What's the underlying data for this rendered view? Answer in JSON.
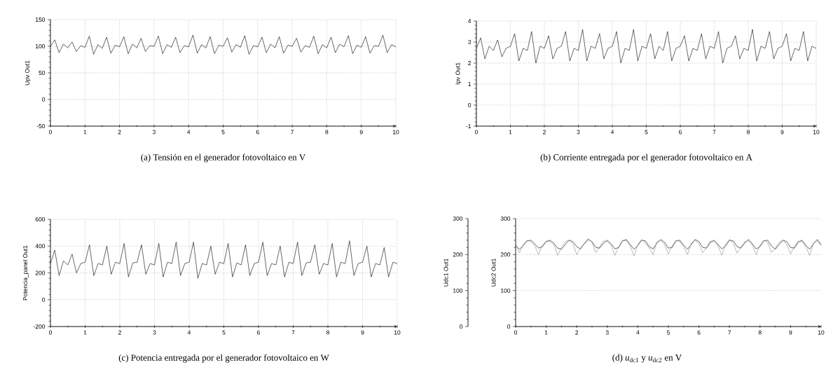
{
  "chart_data": [
    {
      "type": "line",
      "title": "(a) Tensión en el generador fotovoltaico en V",
      "ylabel": "Upv Out1",
      "xlim": [
        0,
        10
      ],
      "ylim": [
        -50,
        150
      ],
      "xticks": [
        0,
        1,
        2,
        3,
        4,
        5,
        6,
        7,
        8,
        9,
        10
      ],
      "yticks": [
        -50,
        0,
        50,
        100,
        150
      ],
      "grid": true,
      "x": [
        0,
        0.125,
        0.25,
        0.375,
        0.5,
        0.625,
        0.75,
        0.875,
        1,
        1.125,
        1.25,
        1.375,
        1.5,
        1.625,
        1.75,
        1.875,
        2,
        2.125,
        2.25,
        2.375,
        2.5,
        2.625,
        2.75,
        2.875,
        3,
        3.125,
        3.25,
        3.375,
        3.5,
        3.625,
        3.75,
        3.875,
        4,
        4.125,
        4.25,
        4.375,
        4.5,
        4.625,
        4.75,
        4.875,
        5,
        5.125,
        5.25,
        5.375,
        5.5,
        5.625,
        5.75,
        5.875,
        6,
        6.125,
        6.25,
        6.375,
        6.5,
        6.625,
        6.75,
        6.875,
        7,
        7.125,
        7.25,
        7.375,
        7.5,
        7.625,
        7.75,
        7.875,
        8,
        8.125,
        8.25,
        8.375,
        8.5,
        8.625,
        8.75,
        8.875,
        9,
        9.125,
        9.25,
        9.375,
        9.5,
        9.625,
        9.75,
        9.875,
        10
      ],
      "series": [
        {
          "color": "#000000",
          "values": [
            100,
            112,
            88,
            104,
            97,
            108,
            90,
            101,
            98,
            119,
            85,
            103,
            96,
            117,
            87,
            102,
            99,
            118,
            86,
            104,
            97,
            115,
            90,
            101,
            100,
            119,
            86,
            103,
            98,
            117,
            88,
            101,
            99,
            121,
            87,
            103,
            97,
            118,
            86,
            102,
            100,
            116,
            89,
            103,
            98,
            120,
            85,
            101,
            99,
            117,
            88,
            104,
            97,
            118,
            87,
            102,
            100,
            115,
            89,
            101,
            98,
            119,
            86,
            103,
            97,
            117,
            88,
            104,
            99,
            120,
            86,
            102,
            98,
            118,
            87,
            101,
            100,
            121,
            88,
            103,
            99
          ]
        }
      ]
    },
    {
      "type": "line",
      "title": "(b) Corriente entregada por el generador fotovoltaico en A",
      "ylabel": "Ipv Out1",
      "xlim": [
        0,
        10
      ],
      "ylim": [
        -1,
        4
      ],
      "xticks": [
        0,
        1,
        2,
        3,
        4,
        5,
        6,
        7,
        8,
        9,
        10
      ],
      "yticks": [
        -1,
        0,
        1,
        2,
        3,
        4
      ],
      "grid": true,
      "x": [
        0,
        0.125,
        0.25,
        0.375,
        0.5,
        0.625,
        0.75,
        0.875,
        1,
        1.125,
        1.25,
        1.375,
        1.5,
        1.625,
        1.75,
        1.875,
        2,
        2.125,
        2.25,
        2.375,
        2.5,
        2.625,
        2.75,
        2.875,
        3,
        3.125,
        3.25,
        3.375,
        3.5,
        3.625,
        3.75,
        3.875,
        4,
        4.125,
        4.25,
        4.375,
        4.5,
        4.625,
        4.75,
        4.875,
        5,
        5.125,
        5.25,
        5.375,
        5.5,
        5.625,
        5.75,
        5.875,
        6,
        6.125,
        6.25,
        6.375,
        6.5,
        6.625,
        6.75,
        6.875,
        7,
        7.125,
        7.25,
        7.375,
        7.5,
        7.625,
        7.75,
        7.875,
        8,
        8.125,
        8.25,
        8.375,
        8.5,
        8.625,
        8.75,
        8.875,
        9,
        9.125,
        9.25,
        9.375,
        9.5,
        9.625,
        9.75,
        9.875,
        10
      ],
      "series": [
        {
          "color": "#000000",
          "values": [
            2.7,
            3.2,
            2.2,
            2.8,
            2.6,
            3.1,
            2.3,
            2.7,
            2.8,
            3.4,
            2.1,
            2.7,
            2.6,
            3.5,
            2.0,
            2.8,
            2.7,
            3.3,
            2.2,
            2.7,
            2.8,
            3.5,
            2.1,
            2.7,
            2.6,
            3.6,
            2.1,
            2.8,
            2.7,
            3.4,
            2.2,
            2.7,
            2.8,
            3.5,
            2.0,
            2.7,
            2.6,
            3.6,
            2.1,
            2.8,
            2.7,
            3.4,
            2.2,
            2.8,
            2.6,
            3.5,
            2.1,
            2.7,
            2.8,
            3.3,
            2.1,
            2.7,
            2.6,
            3.4,
            2.2,
            2.8,
            2.7,
            3.5,
            2.0,
            2.7,
            2.8,
            3.3,
            2.2,
            2.7,
            2.6,
            3.6,
            2.1,
            2.8,
            2.7,
            3.5,
            2.2,
            2.7,
            2.8,
            3.4,
            2.1,
            2.7,
            2.6,
            3.5,
            2.1,
            2.8,
            2.7
          ]
        }
      ]
    },
    {
      "type": "line",
      "title": "(c) Potencia entregada por el generador fotovoltaico en W",
      "ylabel": "Potencia_panel Out1",
      "xlim": [
        0,
        10
      ],
      "ylim": [
        -200,
        600
      ],
      "xticks": [
        0,
        1,
        2,
        3,
        4,
        5,
        6,
        7,
        8,
        9,
        10
      ],
      "yticks": [
        -200,
        0,
        200,
        400,
        600
      ],
      "grid": true,
      "x": [
        0,
        0.125,
        0.25,
        0.375,
        0.5,
        0.625,
        0.75,
        0.875,
        1,
        1.125,
        1.25,
        1.375,
        1.5,
        1.625,
        1.75,
        1.875,
        2,
        2.125,
        2.25,
        2.375,
        2.5,
        2.625,
        2.75,
        2.875,
        3,
        3.125,
        3.25,
        3.375,
        3.5,
        3.625,
        3.75,
        3.875,
        4,
        4.125,
        4.25,
        4.375,
        4.5,
        4.625,
        4.75,
        4.875,
        5,
        5.125,
        5.25,
        5.375,
        5.5,
        5.625,
        5.75,
        5.875,
        6,
        6.125,
        6.25,
        6.375,
        6.5,
        6.625,
        6.75,
        6.875,
        7,
        7.125,
        7.25,
        7.375,
        7.5,
        7.625,
        7.75,
        7.875,
        8,
        8.125,
        8.25,
        8.375,
        8.5,
        8.625,
        8.75,
        8.875,
        9,
        9.125,
        9.25,
        9.375,
        9.5,
        9.625,
        9.75,
        9.875,
        10
      ],
      "series": [
        {
          "color": "#000000",
          "values": [
            270,
            370,
            180,
            290,
            260,
            340,
            200,
            270,
            280,
            410,
            180,
            270,
            260,
            400,
            190,
            280,
            270,
            420,
            170,
            275,
            280,
            410,
            190,
            270,
            260,
            420,
            170,
            280,
            270,
            430,
            180,
            270,
            280,
            430,
            160,
            270,
            260,
            400,
            190,
            280,
            270,
            420,
            170,
            275,
            260,
            410,
            180,
            270,
            280,
            430,
            180,
            270,
            260,
            400,
            170,
            280,
            270,
            430,
            180,
            275,
            280,
            410,
            190,
            270,
            260,
            420,
            170,
            280,
            270,
            440,
            180,
            270,
            280,
            400,
            170,
            270,
            260,
            390,
            170,
            280,
            270
          ]
        }
      ]
    },
    {
      "type": "line",
      "title": "(d) *u*$_{dc1}$ y *u*$_{dc2}$ en V",
      "ylabel": "Udc1 Out1",
      "y2label": "Udc2 Out1",
      "xlim": [
        0,
        10
      ],
      "ylim": [
        0,
        300
      ],
      "y2lim": [
        0,
        300
      ],
      "xticks": [
        0,
        1,
        2,
        3,
        4,
        5,
        6,
        7,
        8,
        9,
        10
      ],
      "yticks": [
        0,
        100,
        200,
        300
      ],
      "y2ticks": [
        0,
        100,
        200,
        300
      ],
      "grid": true,
      "x": [
        0,
        0.125,
        0.25,
        0.375,
        0.5,
        0.625,
        0.75,
        0.875,
        1,
        1.125,
        1.25,
        1.375,
        1.5,
        1.625,
        1.75,
        1.875,
        2,
        2.125,
        2.25,
        2.375,
        2.5,
        2.625,
        2.75,
        2.875,
        3,
        3.125,
        3.25,
        3.375,
        3.5,
        3.625,
        3.75,
        3.875,
        4,
        4.125,
        4.25,
        4.375,
        4.5,
        4.625,
        4.75,
        4.875,
        5,
        5.125,
        5.25,
        5.375,
        5.5,
        5.625,
        5.75,
        5.875,
        6,
        6.125,
        6.25,
        6.375,
        6.5,
        6.625,
        6.75,
        6.875,
        7,
        7.125,
        7.25,
        7.375,
        7.5,
        7.625,
        7.75,
        7.875,
        8,
        8.125,
        8.25,
        8.375,
        8.5,
        8.625,
        8.75,
        8.875,
        9,
        9.125,
        9.25,
        9.375,
        9.5,
        9.625,
        9.75,
        9.875,
        10
      ],
      "series": [
        {
          "color": "#000000",
          "values": [
            225,
            215,
            225,
            238,
            240,
            230,
            218,
            222,
            236,
            240,
            232,
            218,
            215,
            228,
            240,
            236,
            222,
            216,
            230,
            242,
            236,
            220,
            218,
            232,
            240,
            230,
            216,
            220,
            238,
            242,
            228,
            215,
            225,
            240,
            238,
            222,
            216,
            232,
            242,
            234,
            218,
            220,
            238,
            240,
            226,
            215,
            228,
            242,
            236,
            220,
            218,
            234,
            240,
            228,
            216,
            224,
            240,
            238,
            222,
            218,
            232,
            242,
            230,
            216,
            222,
            238,
            240,
            224,
            215,
            228,
            240,
            236,
            220,
            218,
            234,
            240,
            226,
            215,
            230,
            242,
            228
          ]
        },
        {
          "color": "#888888",
          "axis": "y2",
          "values": [
            230,
            205,
            228,
            240,
            236,
            225,
            200,
            226,
            238,
            236,
            228,
            198,
            220,
            236,
            240,
            230,
            200,
            218,
            232,
            245,
            234,
            205,
            222,
            238,
            236,
            226,
            198,
            222,
            240,
            238,
            224,
            196,
            228,
            242,
            232,
            218,
            200,
            236,
            240,
            228,
            202,
            224,
            240,
            236,
            222,
            200,
            232,
            240,
            230,
            205,
            220,
            238,
            236,
            224,
            198,
            228,
            242,
            232,
            204,
            222,
            236,
            238,
            226,
            200,
            226,
            240,
            234,
            206,
            218,
            234,
            240,
            228,
            202,
            222,
            238,
            236,
            222,
            198,
            232,
            238,
            225
          ]
        }
      ]
    }
  ]
}
